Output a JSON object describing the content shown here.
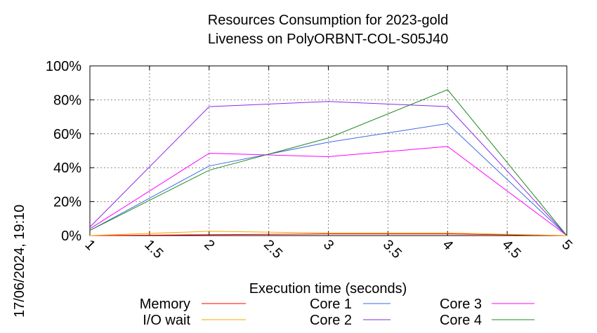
{
  "chart_data": {
    "type": "line",
    "title": "Resources Consumption for 2023-gold",
    "subtitle": "Liveness on PolyORBNT-COL-S05J40",
    "xlabel": "Execution time (seconds)",
    "ylabel": "",
    "xlim": [
      1,
      5
    ],
    "ylim": [
      0,
      100
    ],
    "x_ticks": [
      "1",
      "1.5",
      "2",
      "2.5",
      "3",
      "3.5",
      "4",
      "4.5",
      "5"
    ],
    "y_ticks": [
      "0%",
      "20%",
      "40%",
      "60%",
      "80%",
      "100%"
    ],
    "grid": true,
    "legend_position": "bottom",
    "timestamp": "17/06/2024, 19:10",
    "series": [
      {
        "name": "Memory",
        "color": "#ff0000",
        "x": [
          1,
          2,
          3,
          4,
          5
        ],
        "y": [
          0,
          0.5,
          1,
          1,
          0
        ]
      },
      {
        "name": "I/O wait",
        "color": "#ffa500",
        "x": [
          1,
          2,
          3,
          4,
          5
        ],
        "y": [
          0,
          2.5,
          1.5,
          1.5,
          0
        ]
      },
      {
        "name": "Core 1",
        "color": "#4169e1",
        "x": [
          1,
          2,
          3,
          4,
          5
        ],
        "y": [
          3,
          41,
          55,
          66,
          0
        ]
      },
      {
        "name": "Core 2",
        "color": "#8a2be2",
        "x": [
          1,
          2,
          3,
          4,
          5
        ],
        "y": [
          5,
          76,
          79,
          76,
          0
        ]
      },
      {
        "name": "Core 3",
        "color": "#ff00ff",
        "x": [
          1,
          2,
          3,
          4,
          5
        ],
        "y": [
          4,
          48.5,
          46.5,
          52.5,
          0
        ]
      },
      {
        "name": "Core 4",
        "color": "#228b22",
        "x": [
          1,
          2,
          3,
          4,
          5
        ],
        "y": [
          3,
          38.5,
          57.5,
          86,
          0
        ]
      }
    ]
  }
}
